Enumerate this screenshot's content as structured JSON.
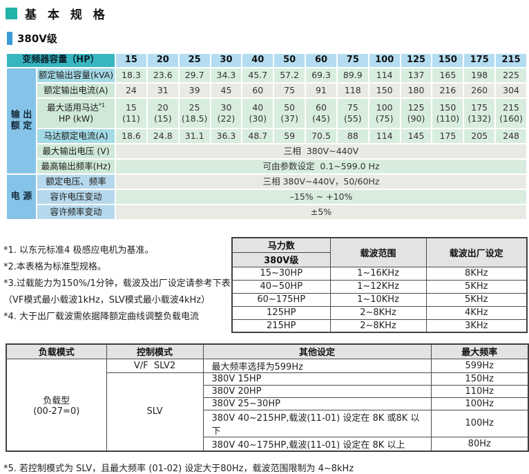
{
  "page": {
    "title": "基 本 规 格",
    "subtitle": "380V级"
  },
  "colors": {
    "title_square": "#24b3aa",
    "subtitle_bar": "#3a9bd8",
    "table_header_teal": "#38b6c0",
    "column_header_blue": "#b4ddf1",
    "section_label_blue": "#85c4e8",
    "row_label_cyan": "#a4dae6",
    "row_label_green": "#cfe8d7",
    "row_label_blue": "#b5d8ec",
    "data_green": "#d8edde",
    "data_gray": "#e9eae3"
  },
  "spec_table": {
    "corner_label": "变频器容量（HP）",
    "capacities": [
      "15",
      "20",
      "25",
      "30",
      "40",
      "50",
      "60",
      "75",
      "100",
      "125",
      "150",
      "175",
      "215"
    ],
    "sections": [
      {
        "label": "输 出\n额 定",
        "rows": 6
      },
      {
        "label": "电 源",
        "rows": 3
      }
    ],
    "rows": [
      {
        "label": "额定输出容量(kVA)",
        "label_style": "cyan",
        "data_style": "green",
        "values": [
          "18.3",
          "23.6",
          "29.7",
          "34.3",
          "45.7",
          "57.2",
          "69.3",
          "89.9",
          "114",
          "137",
          "165",
          "198",
          "225"
        ]
      },
      {
        "label": "额定输出电流(A)",
        "label_style": "green",
        "data_style": "gray",
        "values": [
          "24",
          "31",
          "39",
          "45",
          "60",
          "75",
          "91",
          "118",
          "150",
          "180",
          "216",
          "260",
          "304"
        ]
      },
      {
        "label": "最大适用马达",
        "label_sup": "*1",
        "label_line2": "HP (kW)",
        "tall": true,
        "label_style": "green",
        "data_style": "green",
        "values": [
          "15\n(11)",
          "20\n(15)",
          "25\n(18.5)",
          "30\n(22)",
          "40\n(30)",
          "50\n(37)",
          "60\n(45)",
          "75\n(55)",
          "100\n(75)",
          "125\n(90)",
          "150\n(110)",
          "175\n(132)",
          "215\n(160)"
        ]
      },
      {
        "label": "马达额定电流(A)",
        "label_style": "cyan",
        "data_style": "green",
        "values": [
          "18.6",
          "24.8",
          "31.1",
          "36.3",
          "48.7",
          "59",
          "70.5",
          "88",
          "114",
          "145",
          "175",
          "205",
          "248"
        ]
      },
      {
        "label": "最大输出电压 (V)",
        "label_style": "green",
        "data_style": "gray",
        "span_value": "三相  380V~440V"
      },
      {
        "label": "最高输出频率(Hz)",
        "label_style": "green",
        "data_style": "green",
        "span_value": "可由参数设定  0.1~599.0 Hz"
      },
      {
        "label": "额定电压、频率",
        "label_style": "blue",
        "data_style": "gray",
        "span_value": "三相 380V~440V，50/60Hz"
      },
      {
        "label": "容许电压变动",
        "label_style": "blue",
        "data_style": "green",
        "span_value": "–15% ~ +10%"
      },
      {
        "label": "容许频率变动",
        "label_style": "blue",
        "data_style": "gray",
        "span_value": "±5%"
      }
    ]
  },
  "notes": [
    "*1. 以东元标准4 极感应电机为基准。",
    "*2.本表格为标准型规格。",
    "*3.过载能力为150%/1分钟，载波及出厂设定请参考下表",
    "（VF模式最小载波1kHz，SLV模式最小载波4kHz）",
    "*4. 大于出厂载波需依据降额定曲线调整负载电流"
  ],
  "carrier_table": {
    "header_col1_line1": "马力数",
    "header_col1_line2": "380V级",
    "header_col2": "载波范围",
    "header_col3": "载波出厂设定",
    "rows": [
      [
        "15~30HP",
        "1~16KHz",
        "8KHz"
      ],
      [
        "40~50HP",
        "1~12KHz",
        "5KHz"
      ],
      [
        "60~175HP",
        "1~10KHz",
        "5KHz"
      ],
      [
        "125HP",
        "2~8KHz",
        "4KHz"
      ],
      [
        "215HP",
        "2~8KHz",
        "3KHz"
      ]
    ]
  },
  "mode_table": {
    "headers": [
      "负载模式",
      "控制模式",
      "其他设定",
      "最大频率"
    ],
    "load_mode": "负载型\n(00-27=0)",
    "control_modes": [
      {
        "label": "V/F  SLV2",
        "rows": 1
      },
      {
        "label": "SLV",
        "rows": 5
      }
    ],
    "rows": [
      {
        "setting": "最大频率选择为599Hz",
        "max_freq": "599Hz"
      },
      {
        "setting": "380V 15HP",
        "max_freq": "150Hz"
      },
      {
        "setting": "380V 20HP",
        "max_freq": "110Hz"
      },
      {
        "setting": "380V 25~30HP",
        "max_freq": "100Hz"
      },
      {
        "setting": "380V 40~215HP,载波(11-01) 设定在 8K 或8K 以下",
        "max_freq": "100Hz"
      },
      {
        "setting": "380V 40~175HP,载波(11-01) 设定在 8K 以上",
        "max_freq": "80Hz"
      }
    ]
  },
  "footnote": "*5. 若控制模式为 SLV，且最大频率 (01-02) 设定大于80Hz，载波范围限制为 4~8kHz"
}
